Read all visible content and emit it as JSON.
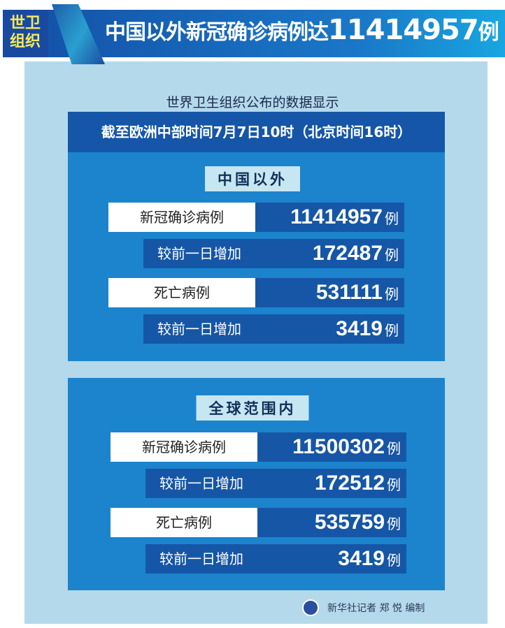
{
  "header": {
    "badge_line1": "世卫",
    "badge_line2": "组织",
    "title_text": "中国以外新冠确诊病例达",
    "title_number": "11414957",
    "title_unit": "例"
  },
  "source": "世界卫生组织公布的数据显示",
  "date": "截至欧洲中部时间7月7日10时（北京时间16时）",
  "sections": [
    {
      "title": "中国以外",
      "rows": [
        {
          "label": "新冠确诊病例",
          "value": "11414957",
          "unit": "例"
        },
        {
          "label": "较前一日增加",
          "value": "172487",
          "unit": "例"
        },
        {
          "label": "死亡病例",
          "value": "531111",
          "unit": "例"
        },
        {
          "label": "较前一日增加",
          "value": "3419",
          "unit": "例"
        }
      ]
    },
    {
      "title": "全球范围内",
      "rows": [
        {
          "label": "新冠确诊病例",
          "value": "11500302",
          "unit": "例"
        },
        {
          "label": "较前一日增加",
          "value": "172512",
          "unit": "例"
        },
        {
          "label": "死亡病例",
          "value": "535759",
          "unit": "例"
        },
        {
          "label": "较前一日增加",
          "value": "3419",
          "unit": "例"
        }
      ]
    }
  ],
  "footer": "新华社记者 郑 悦 编制",
  "colors": {
    "panel": "#b4d9eb",
    "box": "#1b84cd",
    "dark": "#1656a6",
    "badge_text": "#f4ea5a"
  }
}
